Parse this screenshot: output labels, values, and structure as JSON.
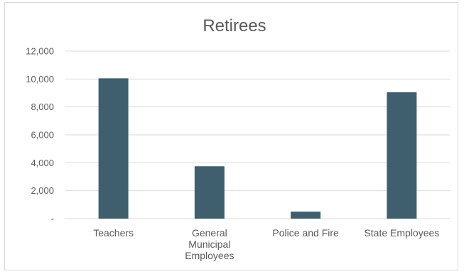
{
  "chart_data": {
    "type": "bar",
    "title": "Retirees",
    "xlabel": "",
    "ylabel": "",
    "categories": [
      [
        "Teachers"
      ],
      [
        "General",
        "Municipal",
        "Employees"
      ],
      [
        "Police and Fire"
      ],
      [
        "State Employees"
      ]
    ],
    "values": [
      10050,
      3750,
      500,
      9050
    ],
    "ylim": [
      0,
      12000
    ],
    "y_ticks": [
      {
        "value": 0,
        "label": "-"
      },
      {
        "value": 2000,
        "label": "2,000"
      },
      {
        "value": 4000,
        "label": "4,000"
      },
      {
        "value": 6000,
        "label": "6,000"
      },
      {
        "value": 8000,
        "label": "8,000"
      },
      {
        "value": 10000,
        "label": "10,000"
      },
      {
        "value": 12000,
        "label": "12,000"
      }
    ],
    "grid": true,
    "legend": "none",
    "colors": {
      "bar": "#3f5f6e",
      "grid": "#d9d9d9",
      "text": "#595959"
    }
  }
}
